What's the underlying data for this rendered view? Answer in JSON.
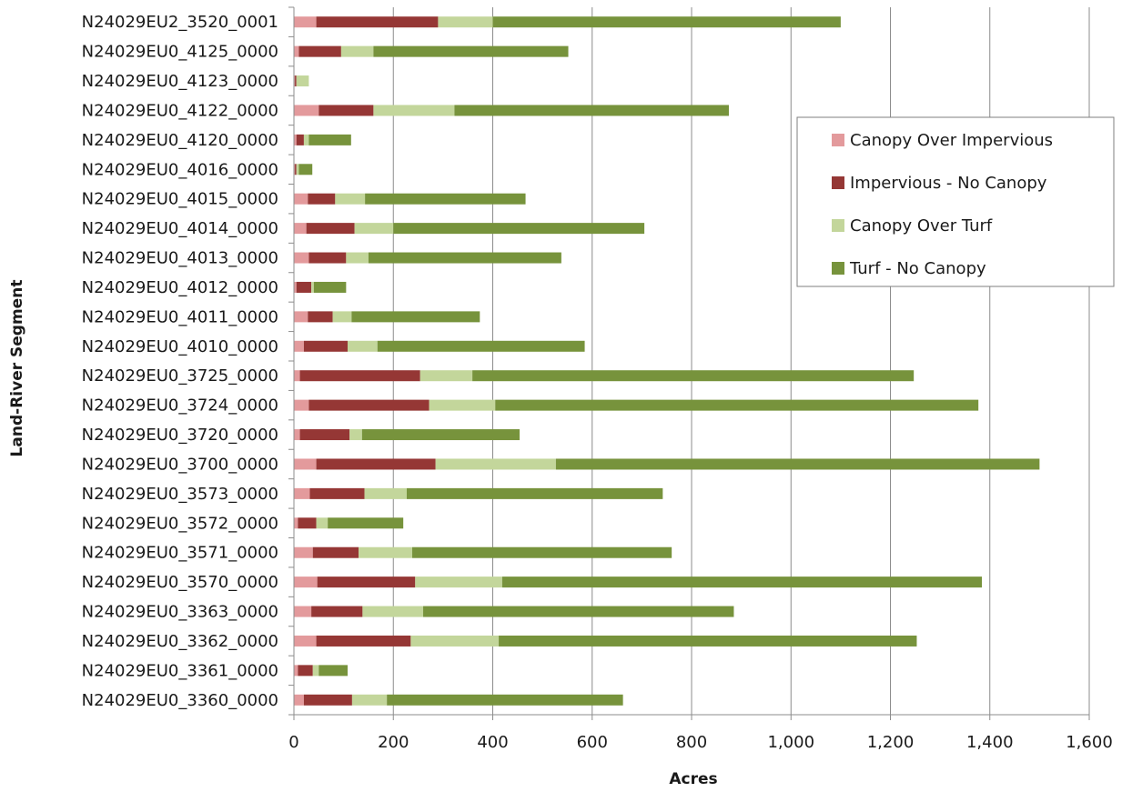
{
  "chart_data": {
    "type": "bar",
    "orientation": "horizontal",
    "stacked": true,
    "title": "",
    "xlabel": "Acres",
    "ylabel": "Land-River Segment",
    "xlim": [
      0,
      1600
    ],
    "xticks": [
      0,
      200,
      400,
      600,
      800,
      1000,
      1200,
      1400,
      1600
    ],
    "xtick_labels": [
      "0",
      "200",
      "400",
      "600",
      "800",
      "1,000",
      "1,200",
      "1,400",
      "1,600"
    ],
    "grid": "vertical major gridlines",
    "legend_position": "right",
    "categories": [
      "N24029EU2_3520_0001",
      "N24029EU0_4125_0000",
      "N24029EU0_4123_0000",
      "N24029EU0_4122_0000",
      "N24029EU0_4120_0000",
      "N24029EU0_4016_0000",
      "N24029EU0_4015_0000",
      "N24029EU0_4014_0000",
      "N24029EU0_4013_0000",
      "N24029EU0_4012_0000",
      "N24029EU0_4011_0000",
      "N24029EU0_4010_0000",
      "N24029EU0_3725_0000",
      "N24029EU0_3724_0000",
      "N24029EU0_3720_0000",
      "N24029EU0_3700_0000",
      "N24029EU0_3573_0000",
      "N24029EU0_3572_0000",
      "N24029EU0_3571_0000",
      "N24029EU0_3570_0000",
      "N24029EU0_3363_0000",
      "N24029EU0_3362_0000",
      "N24029EU0_3361_0000",
      "N24029EU0_3360_0000"
    ],
    "series": [
      {
        "name": "Canopy Over Impervious",
        "color": "#e39a9c",
        "values": [
          45,
          10,
          2,
          50,
          5,
          2,
          28,
          25,
          30,
          5,
          28,
          20,
          12,
          30,
          12,
          45,
          32,
          8,
          38,
          47,
          35,
          45,
          8,
          20
        ]
      },
      {
        "name": "Impervious - No Canopy",
        "color": "#953735",
        "values": [
          245,
          85,
          3,
          110,
          15,
          3,
          55,
          97,
          75,
          30,
          50,
          88,
          242,
          242,
          100,
          240,
          110,
          37,
          92,
          197,
          103,
          190,
          30,
          97
        ]
      },
      {
        "name": "Canopy Over Turf",
        "color": "#c3d69b",
        "values": [
          110,
          65,
          25,
          163,
          10,
          5,
          60,
          78,
          45,
          5,
          38,
          60,
          105,
          133,
          25,
          242,
          85,
          23,
          108,
          175,
          122,
          177,
          12,
          70
        ]
      },
      {
        "name": "Turf - No Canopy",
        "color": "#77933c",
        "values": [
          700,
          392,
          0,
          552,
          85,
          27,
          323,
          505,
          388,
          65,
          258,
          417,
          888,
          972,
          317,
          973,
          515,
          152,
          522,
          965,
          625,
          841,
          58,
          475
        ]
      }
    ]
  }
}
